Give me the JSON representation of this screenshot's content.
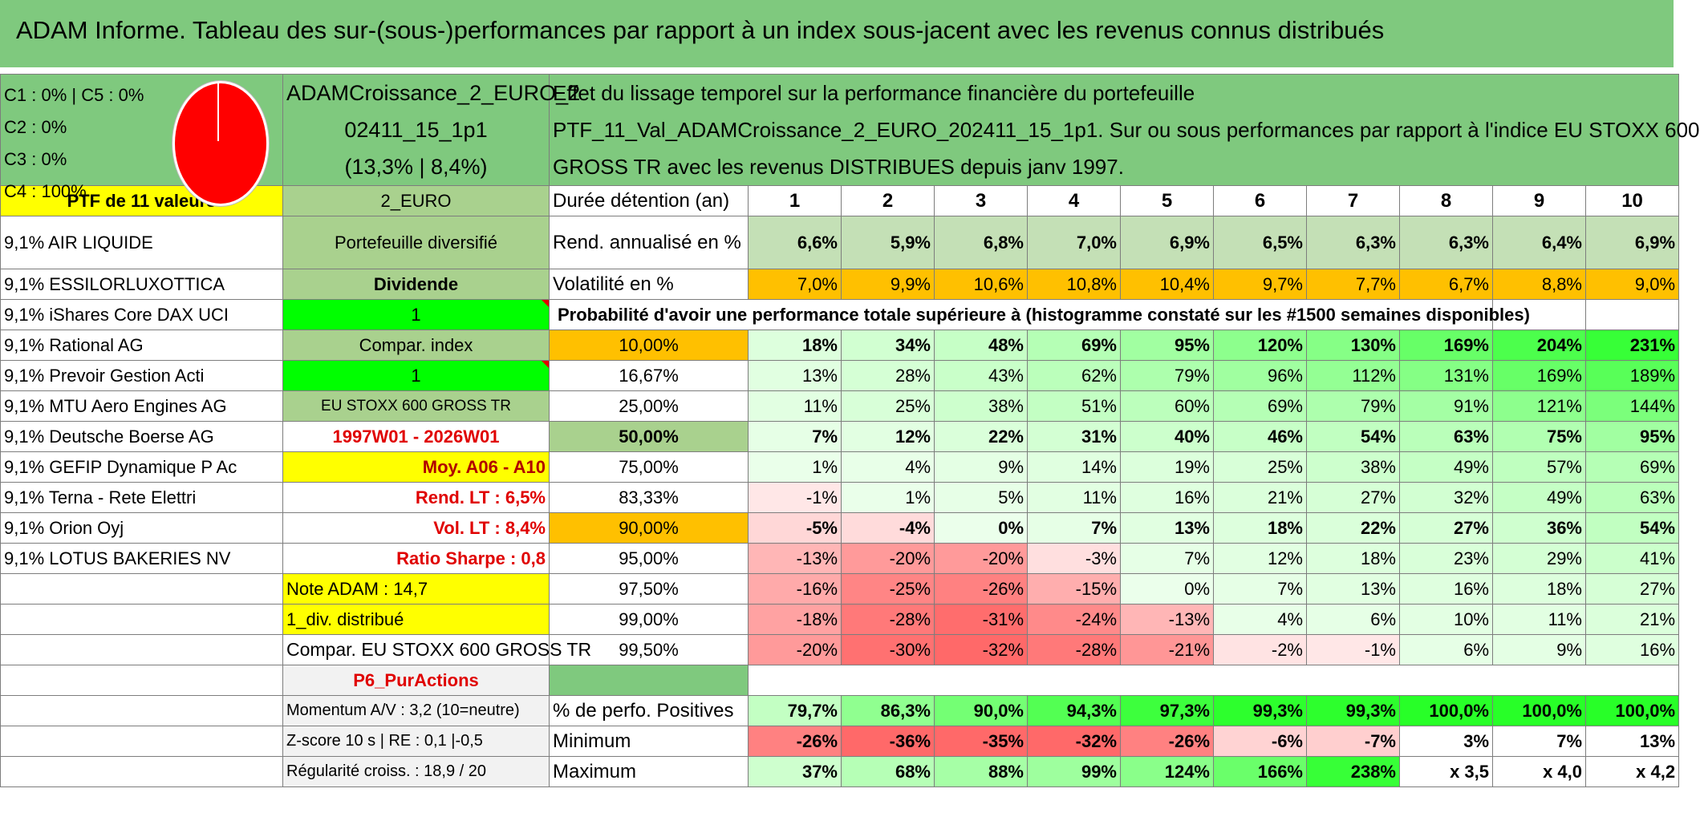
{
  "title": "ADAM Informe. Tableau des sur-(sous-)performances par rapport à un index sous-jacent avec les revenus connus distribués",
  "classes": [
    "C1 : 0% | C5 : 0%",
    "C2 : 0%",
    "C3 : 0%",
    "C4 : 100%"
  ],
  "portfolio_name_lines": [
    "ADAMCroissance_2_EURO_2",
    "02411_15_1p1",
    "(13,3% | 8,4%)"
  ],
  "description_lines": [
    "Effet du lissage temporel sur la performance financière du portefeuille",
    "PTF_11_Val_ADAMCroissance_2_EURO_202411_15_1p1. Sur ou sous performances par rapport à l'indice EU STOXX 600",
    "GROSS TR avec les revenus DISTRIBUES depuis janv 1997."
  ],
  "ptf_label": "PTF de 11 valeurs",
  "currency_label": "2_EURO",
  "duration_label": "Durée détention (an)",
  "years": [
    "1",
    "2",
    "3",
    "4",
    "5",
    "6",
    "7",
    "8",
    "9",
    "10"
  ],
  "holdings": [
    "9,1% AIR LIQUIDE",
    "9,1% ESSILORLUXOTTICA",
    "9,1% iShares Core DAX UCI",
    "9,1% Rational AG",
    "9,1% Prevoir Gestion Acti",
    "9,1% MTU Aero Engines AG",
    "9,1% Deutsche Boerse AG",
    "9,1% GEFIP Dynamique P Ac",
    "9,1% Terna - Rete Elettri",
    "9,1% Orion Oyj",
    "9,1% LOTUS BAKERIES NV"
  ],
  "mid_column": {
    "diversified": "Portefeuille diversifié",
    "dividend": "Dividende",
    "one_a": "1",
    "compar_index": "Compar. index",
    "one_b": "1",
    "index_name": "EU STOXX 600 GROSS TR",
    "period": "1997W01 - 2026W01",
    "moy": "Moy. A06 - A10",
    "rend_lt": "Rend. LT : 6,5%",
    "vol_lt": "Vol. LT : 8,4%",
    "sharpe": "Ratio Sharpe : 0,8",
    "note": "Note ADAM : 14,7",
    "div": "1_div. distribué",
    "compar": "Compar. EU STOXX 600 GROSS TR",
    "category": "P6_PurActions",
    "momentum": "Momentum A/V : 3,2 (10=neutre)",
    "zscore": "Z-score 10 s | RE : 0,1 |-0,5",
    "regularite": "Régularité croiss. : 18,9 / 20"
  },
  "rend_label": "Rend. annualisé en %",
  "rend": [
    "6,6%",
    "5,9%",
    "6,8%",
    "7,0%",
    "6,9%",
    "6,5%",
    "6,3%",
    "6,3%",
    "6,4%",
    "6,9%"
  ],
  "vol_label": "Volatilité en %",
  "vol": [
    "7,0%",
    "9,9%",
    "10,6%",
    "10,8%",
    "10,4%",
    "9,7%",
    "7,7%",
    "6,7%",
    "8,8%",
    "9,0%"
  ],
  "prob_label": "Probabilité d'avoir une performance totale supérieure à (histogramme constaté sur les #1500 semaines disponibles)",
  "quantiles": [
    {
      "p": "10,00%",
      "v": [
        "18%",
        "34%",
        "48%",
        "69%",
        "95%",
        "120%",
        "130%",
        "169%",
        "204%",
        "231%"
      ]
    },
    {
      "p": "16,67%",
      "v": [
        "13%",
        "28%",
        "43%",
        "62%",
        "79%",
        "96%",
        "112%",
        "131%",
        "169%",
        "189%"
      ]
    },
    {
      "p": "25,00%",
      "v": [
        "11%",
        "25%",
        "38%",
        "51%",
        "60%",
        "69%",
        "79%",
        "91%",
        "121%",
        "144%"
      ]
    },
    {
      "p": "50,00%",
      "v": [
        "7%",
        "12%",
        "22%",
        "31%",
        "40%",
        "46%",
        "54%",
        "63%",
        "75%",
        "95%"
      ]
    },
    {
      "p": "75,00%",
      "v": [
        "1%",
        "4%",
        "9%",
        "14%",
        "19%",
        "25%",
        "38%",
        "49%",
        "57%",
        "69%"
      ]
    },
    {
      "p": "83,33%",
      "v": [
        "-1%",
        "1%",
        "5%",
        "11%",
        "16%",
        "21%",
        "27%",
        "32%",
        "49%",
        "63%"
      ]
    },
    {
      "p": "90,00%",
      "v": [
        "-5%",
        "-4%",
        "0%",
        "7%",
        "13%",
        "18%",
        "22%",
        "27%",
        "36%",
        "54%"
      ]
    },
    {
      "p": "95,00%",
      "v": [
        "-13%",
        "-20%",
        "-20%",
        "-3%",
        "7%",
        "12%",
        "18%",
        "23%",
        "29%",
        "41%"
      ]
    },
    {
      "p": "97,50%",
      "v": [
        "-16%",
        "-25%",
        "-26%",
        "-15%",
        "0%",
        "7%",
        "13%",
        "16%",
        "18%",
        "27%"
      ]
    },
    {
      "p": "99,00%",
      "v": [
        "-18%",
        "-28%",
        "-31%",
        "-24%",
        "-13%",
        "4%",
        "6%",
        "10%",
        "11%",
        "21%"
      ]
    },
    {
      "p": "99,50%",
      "v": [
        "-20%",
        "-30%",
        "-32%",
        "-28%",
        "-21%",
        "-2%",
        "-1%",
        "6%",
        "9%",
        "16%"
      ]
    }
  ],
  "pos_label": "% de perfo. Positives",
  "pos": [
    "79,7%",
    "86,3%",
    "90,0%",
    "94,3%",
    "97,3%",
    "99,3%",
    "99,3%",
    "100,0%",
    "100,0%",
    "100,0%"
  ],
  "min_label": "Minimum",
  "min": [
    "-26%",
    "-36%",
    "-35%",
    "-32%",
    "-26%",
    "-6%",
    "-7%",
    "3%",
    "7%",
    "13%"
  ],
  "max_label": "Maximum",
  "max": [
    "37%",
    "68%",
    "88%",
    "99%",
    "124%",
    "166%",
    "238%",
    "x 3,5",
    "x 4,0",
    "x 4,2"
  ]
}
